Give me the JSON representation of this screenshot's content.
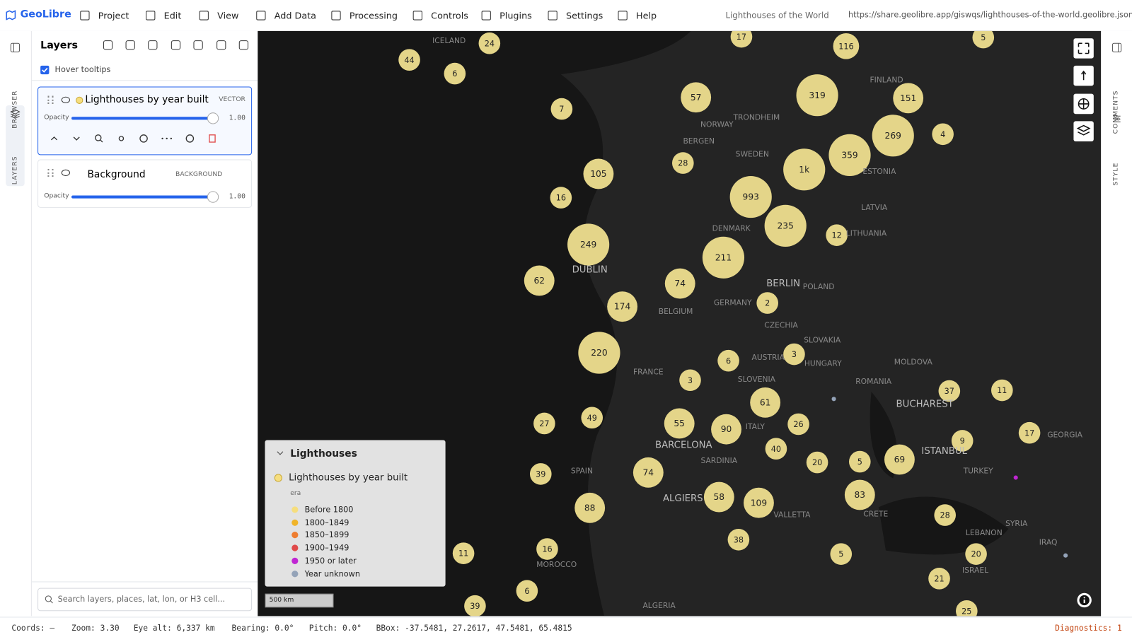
{
  "menu": {
    "brand": "GeoLibre",
    "items": [
      "Project",
      "Edit",
      "View",
      "Add Data",
      "Processing",
      "Controls",
      "Plugins",
      "Settings",
      "Help"
    ],
    "project_title": "Lighthouses of the World",
    "url": "https://share.geolibre.app/giswqs/lighthouses-of-the-world.geolibre.json"
  },
  "rail_left": [
    "BROWSER",
    "LAYERS"
  ],
  "rail_right": [
    "COMMENTS",
    "STYLE"
  ],
  "layers_panel": {
    "title": "Layers",
    "hover_tooltips": "Hover tooltips",
    "layers": [
      {
        "name": "Lighthouses by year built",
        "kind": "VECTOR",
        "opacity_label": "Opacity",
        "opacity": "1.00"
      },
      {
        "name": "Background",
        "kind": "BACKGROUND",
        "opacity_label": "Opacity",
        "opacity": "1.00"
      }
    ],
    "search_placeholder": "Search layers, places, lat, lon, or H3 cell..."
  },
  "map": {
    "clusters": [
      "44",
      "6",
      "24",
      "17",
      "116",
      "5",
      "7",
      "57",
      "319",
      "151",
      "269",
      "4",
      "28",
      "105",
      "359",
      "1k",
      "993",
      "16",
      "235",
      "12",
      "249",
      "211",
      "62",
      "74",
      "174",
      "2",
      "220",
      "6",
      "3",
      "3",
      "61",
      "37",
      "11",
      "27",
      "49",
      "55",
      "90",
      "26",
      "17",
      "9",
      "40",
      "20",
      "5",
      "69",
      "39",
      "74",
      "58",
      "109",
      "83",
      "28",
      "88",
      "38",
      "11",
      "16",
      "5",
      "20",
      "21",
      "6",
      "39",
      "25"
    ],
    "labels": [
      "ICELAND",
      "TRONDHEIM",
      "FINLAND",
      "NORWAY",
      "BERGEN",
      "SWEDEN",
      "ESTONIA",
      "LATVIA",
      "DENMARK",
      "LITHUANIA",
      "DUBLIN",
      "BERLIN",
      "POLAND",
      "GERMANY",
      "BELGIUM",
      "CZECHIA",
      "SLOVAKIA",
      "FRANCE",
      "AUSTRIA",
      "HUNGARY",
      "ROMANIA",
      "MOLDOVA",
      "BUCHAREST",
      "ITALY",
      "BARCELONA",
      "SPAIN",
      "ISTANBUL",
      "TURKEY",
      "GEORGIA",
      "ALGIERS",
      "MOROCCO",
      "ALGERIA",
      "ISRAEL",
      "SYRIA",
      "LEBANON",
      "IRAQ",
      "CRETE",
      "SARDINIA",
      "VALLETTA",
      "SLOVENIA"
    ],
    "scale": "500 km"
  },
  "legend": {
    "title": "Lighthouses",
    "layer": "Lighthouses by year built",
    "field": "era",
    "items": [
      {
        "label": "Before 1800",
        "color": "#f6de7e"
      },
      {
        "label": "1800–1849",
        "color": "#f0b429"
      },
      {
        "label": "1850–1899",
        "color": "#ee7d30"
      },
      {
        "label": "1900–1949",
        "color": "#e04a4a"
      },
      {
        "label": "1950 or later",
        "color": "#c026d3"
      },
      {
        "label": "Year unknown",
        "color": "#94a3b8"
      }
    ]
  },
  "status": [
    "Coords: —",
    "Zoom: 3.30",
    "Eye alt: 6,337 km",
    "Bearing: 0.0°",
    "Pitch: 0.0°",
    "BBox: -37.5481, 27.2617, 47.5481, 65.4815"
  ],
  "diagnostics": "Diagnostics: 1"
}
